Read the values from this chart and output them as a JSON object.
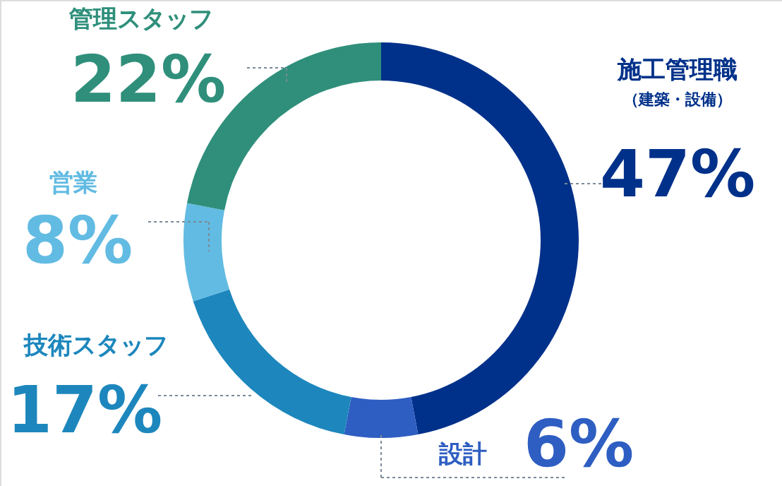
{
  "chart_data": {
    "type": "donut",
    "categories": [
      "施工管理職",
      "設計",
      "技術スタッフ",
      "営業",
      "管理スタッフ"
    ],
    "values": [
      47,
      6,
      17,
      8,
      22
    ],
    "colors": [
      "#00318a",
      "#2e5ec2",
      "#1d87bd",
      "#62bbe2",
      "#2f8f7b"
    ],
    "value_labels": [
      "47%",
      "6%",
      "17%",
      "8%",
      "22%"
    ],
    "annotations": [
      "（建築・設備）"
    ]
  }
}
